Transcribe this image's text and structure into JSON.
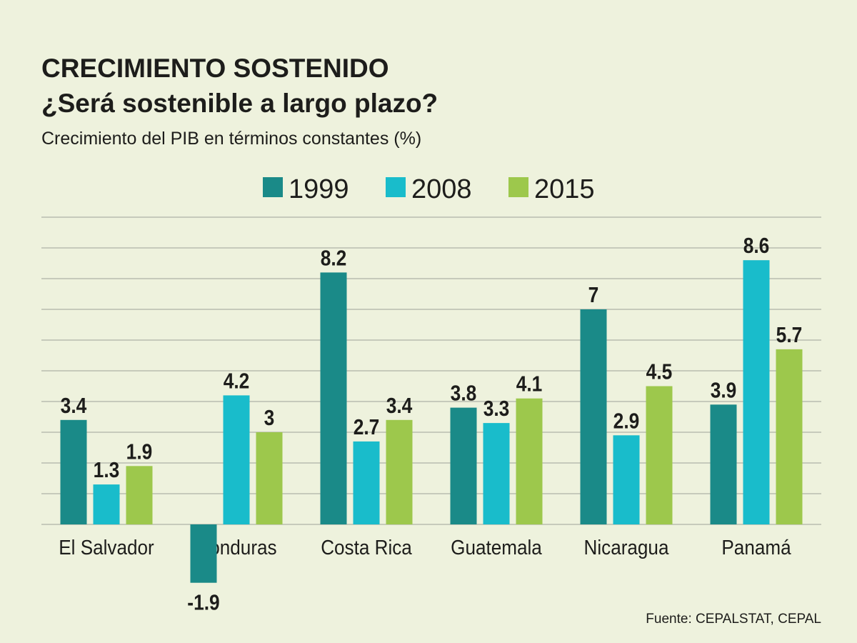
{
  "chart_data": {
    "type": "bar",
    "title": "CRECIMIENTO SOSTENIDO",
    "subtitle": "¿Será sostenible a largo plazo?",
    "description": "Crecimiento del PIB en términos constantes (%)",
    "source": "Fuente: CEPALSTAT, CEPAL",
    "categories": [
      "El Salvador",
      "Honduras",
      "Costa Rica",
      "Guatemala",
      "Nicaragua",
      "Panamá"
    ],
    "series": [
      {
        "name": "1999",
        "color": "#1a8a88",
        "values": [
          3.4,
          -1.9,
          8.2,
          3.8,
          7,
          3.9
        ]
      },
      {
        "name": "2008",
        "color": "#19bccb",
        "values": [
          1.3,
          4.2,
          2.7,
          3.3,
          2.9,
          8.6
        ]
      },
      {
        "name": "2015",
        "color": "#9dc84c",
        "values": [
          1.9,
          3,
          3.4,
          4.1,
          4.5,
          5.7
        ]
      }
    ],
    "ylim": [
      -2,
      10
    ],
    "yticks": [
      0,
      1,
      2,
      3,
      4,
      5,
      6,
      7,
      8,
      9,
      10
    ],
    "grid": true
  }
}
